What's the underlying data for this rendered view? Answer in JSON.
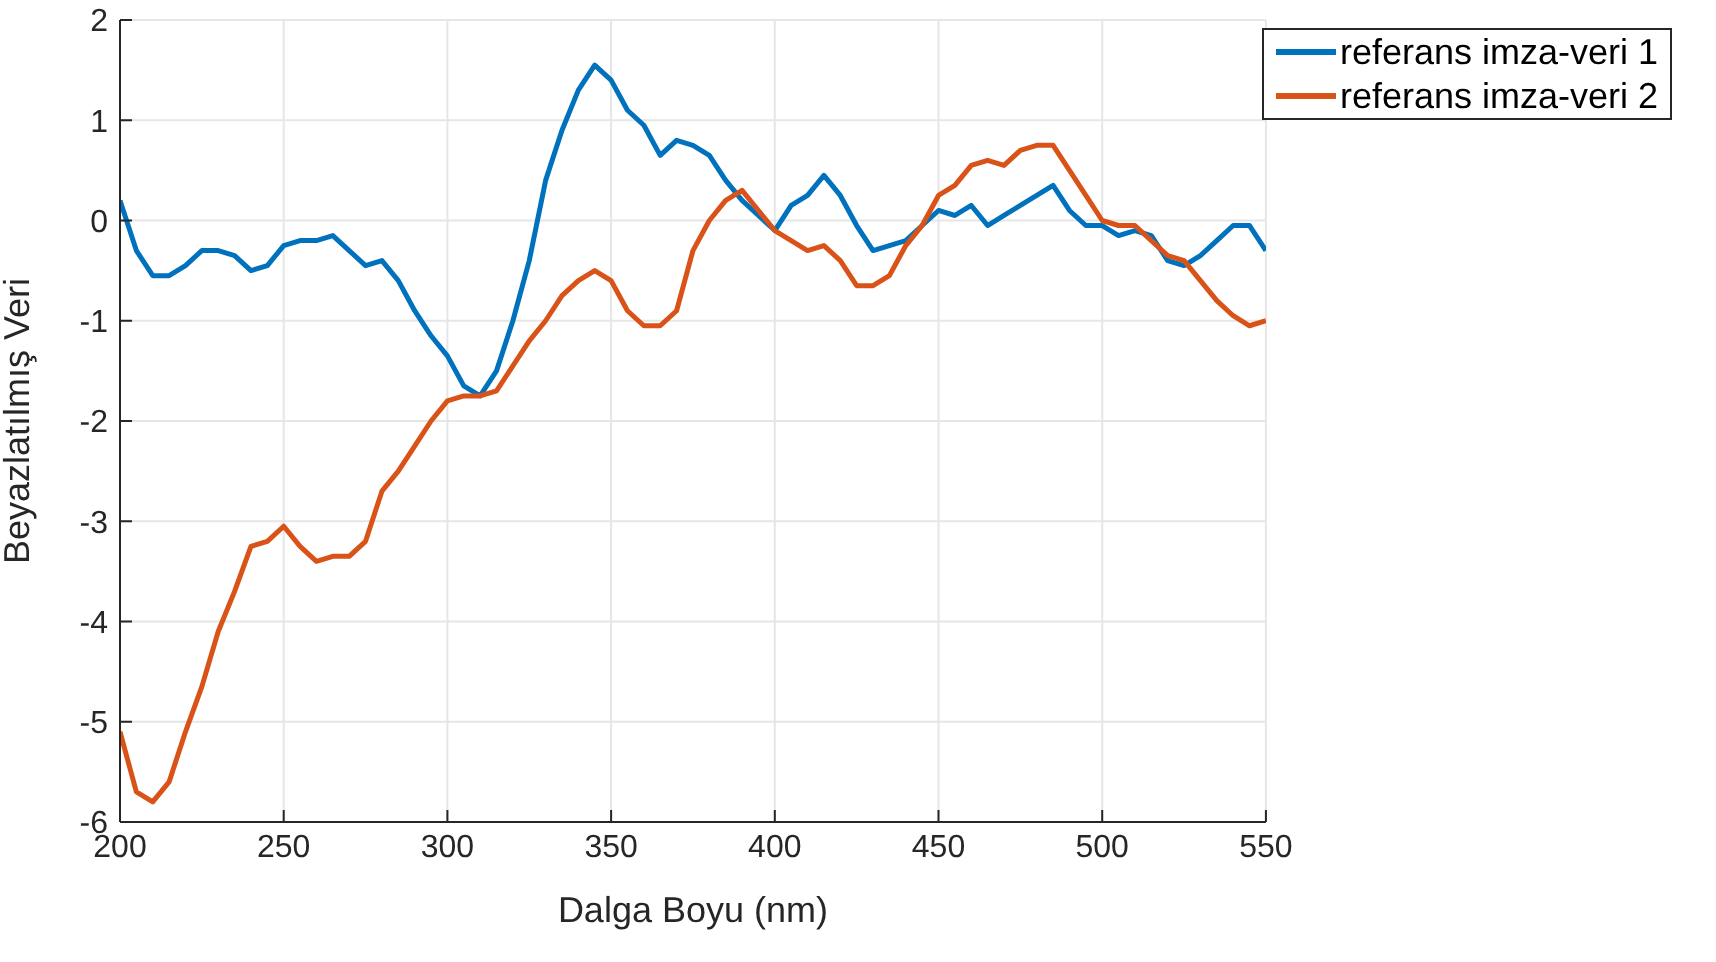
{
  "chart_data": {
    "type": "line",
    "xlabel": "Dalga Boyu (nm)",
    "ylabel": "Beyazlatılmış Veri",
    "x": [
      200,
      205,
      210,
      215,
      220,
      225,
      230,
      235,
      240,
      245,
      250,
      255,
      260,
      265,
      270,
      275,
      280,
      285,
      290,
      295,
      300,
      305,
      310,
      315,
      320,
      325,
      330,
      335,
      340,
      345,
      350,
      355,
      360,
      365,
      370,
      375,
      380,
      385,
      390,
      395,
      400,
      405,
      410,
      415,
      420,
      425,
      430,
      435,
      440,
      445,
      450,
      455,
      460,
      465,
      470,
      475,
      480,
      485,
      490,
      495,
      500,
      505,
      510,
      515,
      520,
      525,
      530,
      535,
      540,
      545,
      550
    ],
    "series": [
      {
        "name": "referans imza-veri 1",
        "color": "#0072bd",
        "values": [
          0.2,
          -0.3,
          -0.55,
          -0.55,
          -0.45,
          -0.3,
          -0.3,
          -0.35,
          -0.5,
          -0.45,
          -0.25,
          -0.2,
          -0.2,
          -0.15,
          -0.3,
          -0.45,
          -0.4,
          -0.6,
          -0.9,
          -1.15,
          -1.35,
          -1.65,
          -1.75,
          -1.5,
          -1.0,
          -0.4,
          0.4,
          0.9,
          1.3,
          1.55,
          1.4,
          1.1,
          0.95,
          0.65,
          0.8,
          0.75,
          0.65,
          0.4,
          0.2,
          0.05,
          -0.1,
          0.15,
          0.25,
          0.45,
          0.25,
          -0.05,
          -0.3,
          -0.25,
          -0.2,
          -0.05,
          0.1,
          0.05,
          0.15,
          -0.05,
          0.05,
          0.15,
          0.25,
          0.35,
          0.1,
          -0.05,
          -0.05,
          -0.15,
          -0.1,
          -0.15,
          -0.4,
          -0.45,
          -0.35,
          -0.2,
          -0.05,
          -0.05,
          -0.3
        ]
      },
      {
        "name": "referans imza-veri 2",
        "color": "#d95319",
        "values": [
          -5.1,
          -5.7,
          -5.8,
          -5.6,
          -5.1,
          -4.65,
          -4.1,
          -3.7,
          -3.25,
          -3.2,
          -3.05,
          -3.25,
          -3.4,
          -3.35,
          -3.35,
          -3.2,
          -2.7,
          -2.5,
          -2.25,
          -2.0,
          -1.8,
          -1.75,
          -1.75,
          -1.7,
          -1.45,
          -1.2,
          -1.0,
          -0.75,
          -0.6,
          -0.5,
          -0.6,
          -0.9,
          -1.05,
          -1.05,
          -0.9,
          -0.3,
          0.0,
          0.2,
          0.3,
          0.1,
          -0.1,
          -0.2,
          -0.3,
          -0.25,
          -0.4,
          -0.65,
          -0.65,
          -0.55,
          -0.25,
          -0.05,
          0.25,
          0.35,
          0.55,
          0.6,
          0.55,
          0.7,
          0.75,
          0.75,
          0.5,
          0.25,
          0.0,
          -0.05,
          -0.05,
          -0.2,
          -0.35,
          -0.4,
          -0.6,
          -0.8,
          -0.95,
          -1.05,
          -1.0
        ]
      }
    ],
    "xlim": [
      200,
      550
    ],
    "xticks": [
      200,
      250,
      300,
      350,
      400,
      450,
      500,
      550
    ],
    "ylim": [
      -6,
      2
    ],
    "yticks": [
      -6,
      -5,
      -4,
      -3,
      -2,
      -1,
      0,
      1,
      2
    ],
    "grid": true,
    "legend": "top right",
    "marker": "none",
    "line_style": "solid"
  }
}
